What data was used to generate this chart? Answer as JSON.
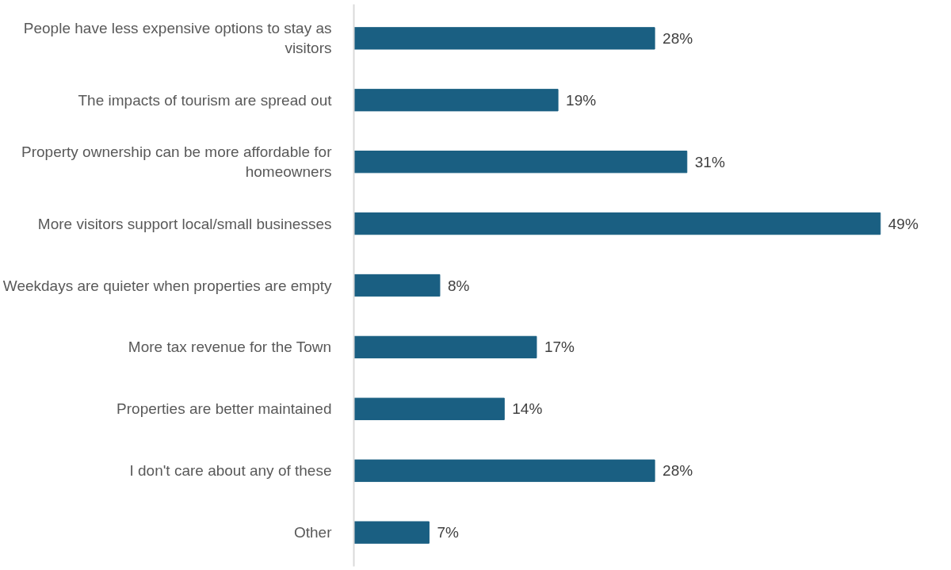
{
  "chart_data": {
    "type": "bar",
    "orientation": "horizontal",
    "grid": false,
    "tick_labels": "y",
    "categories": [
      "People have less expensive options to stay as visitors",
      "The impacts of tourism are spread out",
      "Property ownership can be more affordable for homeowners",
      "More visitors support local/small businesses",
      "Weekdays are quieter when properties are empty",
      "More tax revenue for the Town",
      "Properties are better maintained",
      "I don't care about any of these",
      "Other"
    ],
    "series": [
      {
        "color": "#1a5f82",
        "values": [
          28,
          19,
          31,
          49,
          8,
          17,
          14,
          28,
          7
        ],
        "value_labels": [
          "28%",
          "19%",
          "31%",
          "49%",
          "8%",
          "17%",
          "14%",
          "28%",
          "7%"
        ]
      }
    ]
  }
}
